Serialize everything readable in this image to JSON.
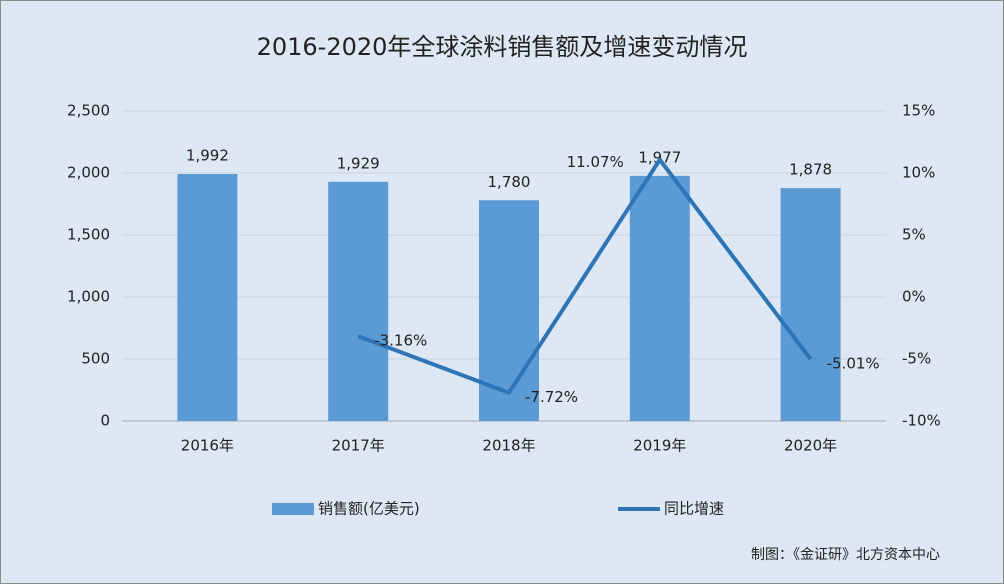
{
  "chart_data": {
    "type": "bar",
    "title": "2016-2020年全球涂料销售额及增速变动情况",
    "categories": [
      "2016年",
      "2017年",
      "2018年",
      "2019年",
      "2020年"
    ],
    "series": [
      {
        "name": "销售额(亿美元)",
        "color": "#5b9bd5",
        "values": [
          1992,
          1929,
          1780,
          1977,
          1878
        ],
        "value_labels": [
          "1,992",
          "1,929",
          "1,780",
          "1,977",
          "1,878"
        ]
      },
      {
        "name": "同比增速",
        "type": "line",
        "axis": "y2",
        "color": "#2e75b6",
        "values": [
          null,
          -3.16,
          -7.72,
          11.07,
          -5.01
        ],
        "value_labels": [
          null,
          "-3.16%",
          "-7.72%",
          "11.07%",
          "-5.01%"
        ]
      }
    ],
    "ylim": [
      0,
      2500
    ],
    "yticks": [
      0,
      500,
      {
        "value": 1000,
        "label": "1,000"
      },
      {
        "value": 1500,
        "label": "1,500"
      },
      {
        "value": 2000,
        "label": "2,000"
      },
      {
        "value": 2500,
        "label": "2,500"
      }
    ],
    "y2lim": [
      -10,
      15
    ],
    "y2ticks": [
      {
        "value": -10,
        "label": "-10%"
      },
      {
        "value": -5,
        "label": "-5%"
      },
      {
        "value": 0,
        "label": "0%"
      },
      {
        "value": 5,
        "label": "5%"
      },
      {
        "value": 10,
        "label": "10%"
      },
      {
        "value": 15,
        "label": "15%"
      }
    ],
    "grid": true,
    "legend": "bottom",
    "note": "制图：《金证研》北方资本中心"
  }
}
